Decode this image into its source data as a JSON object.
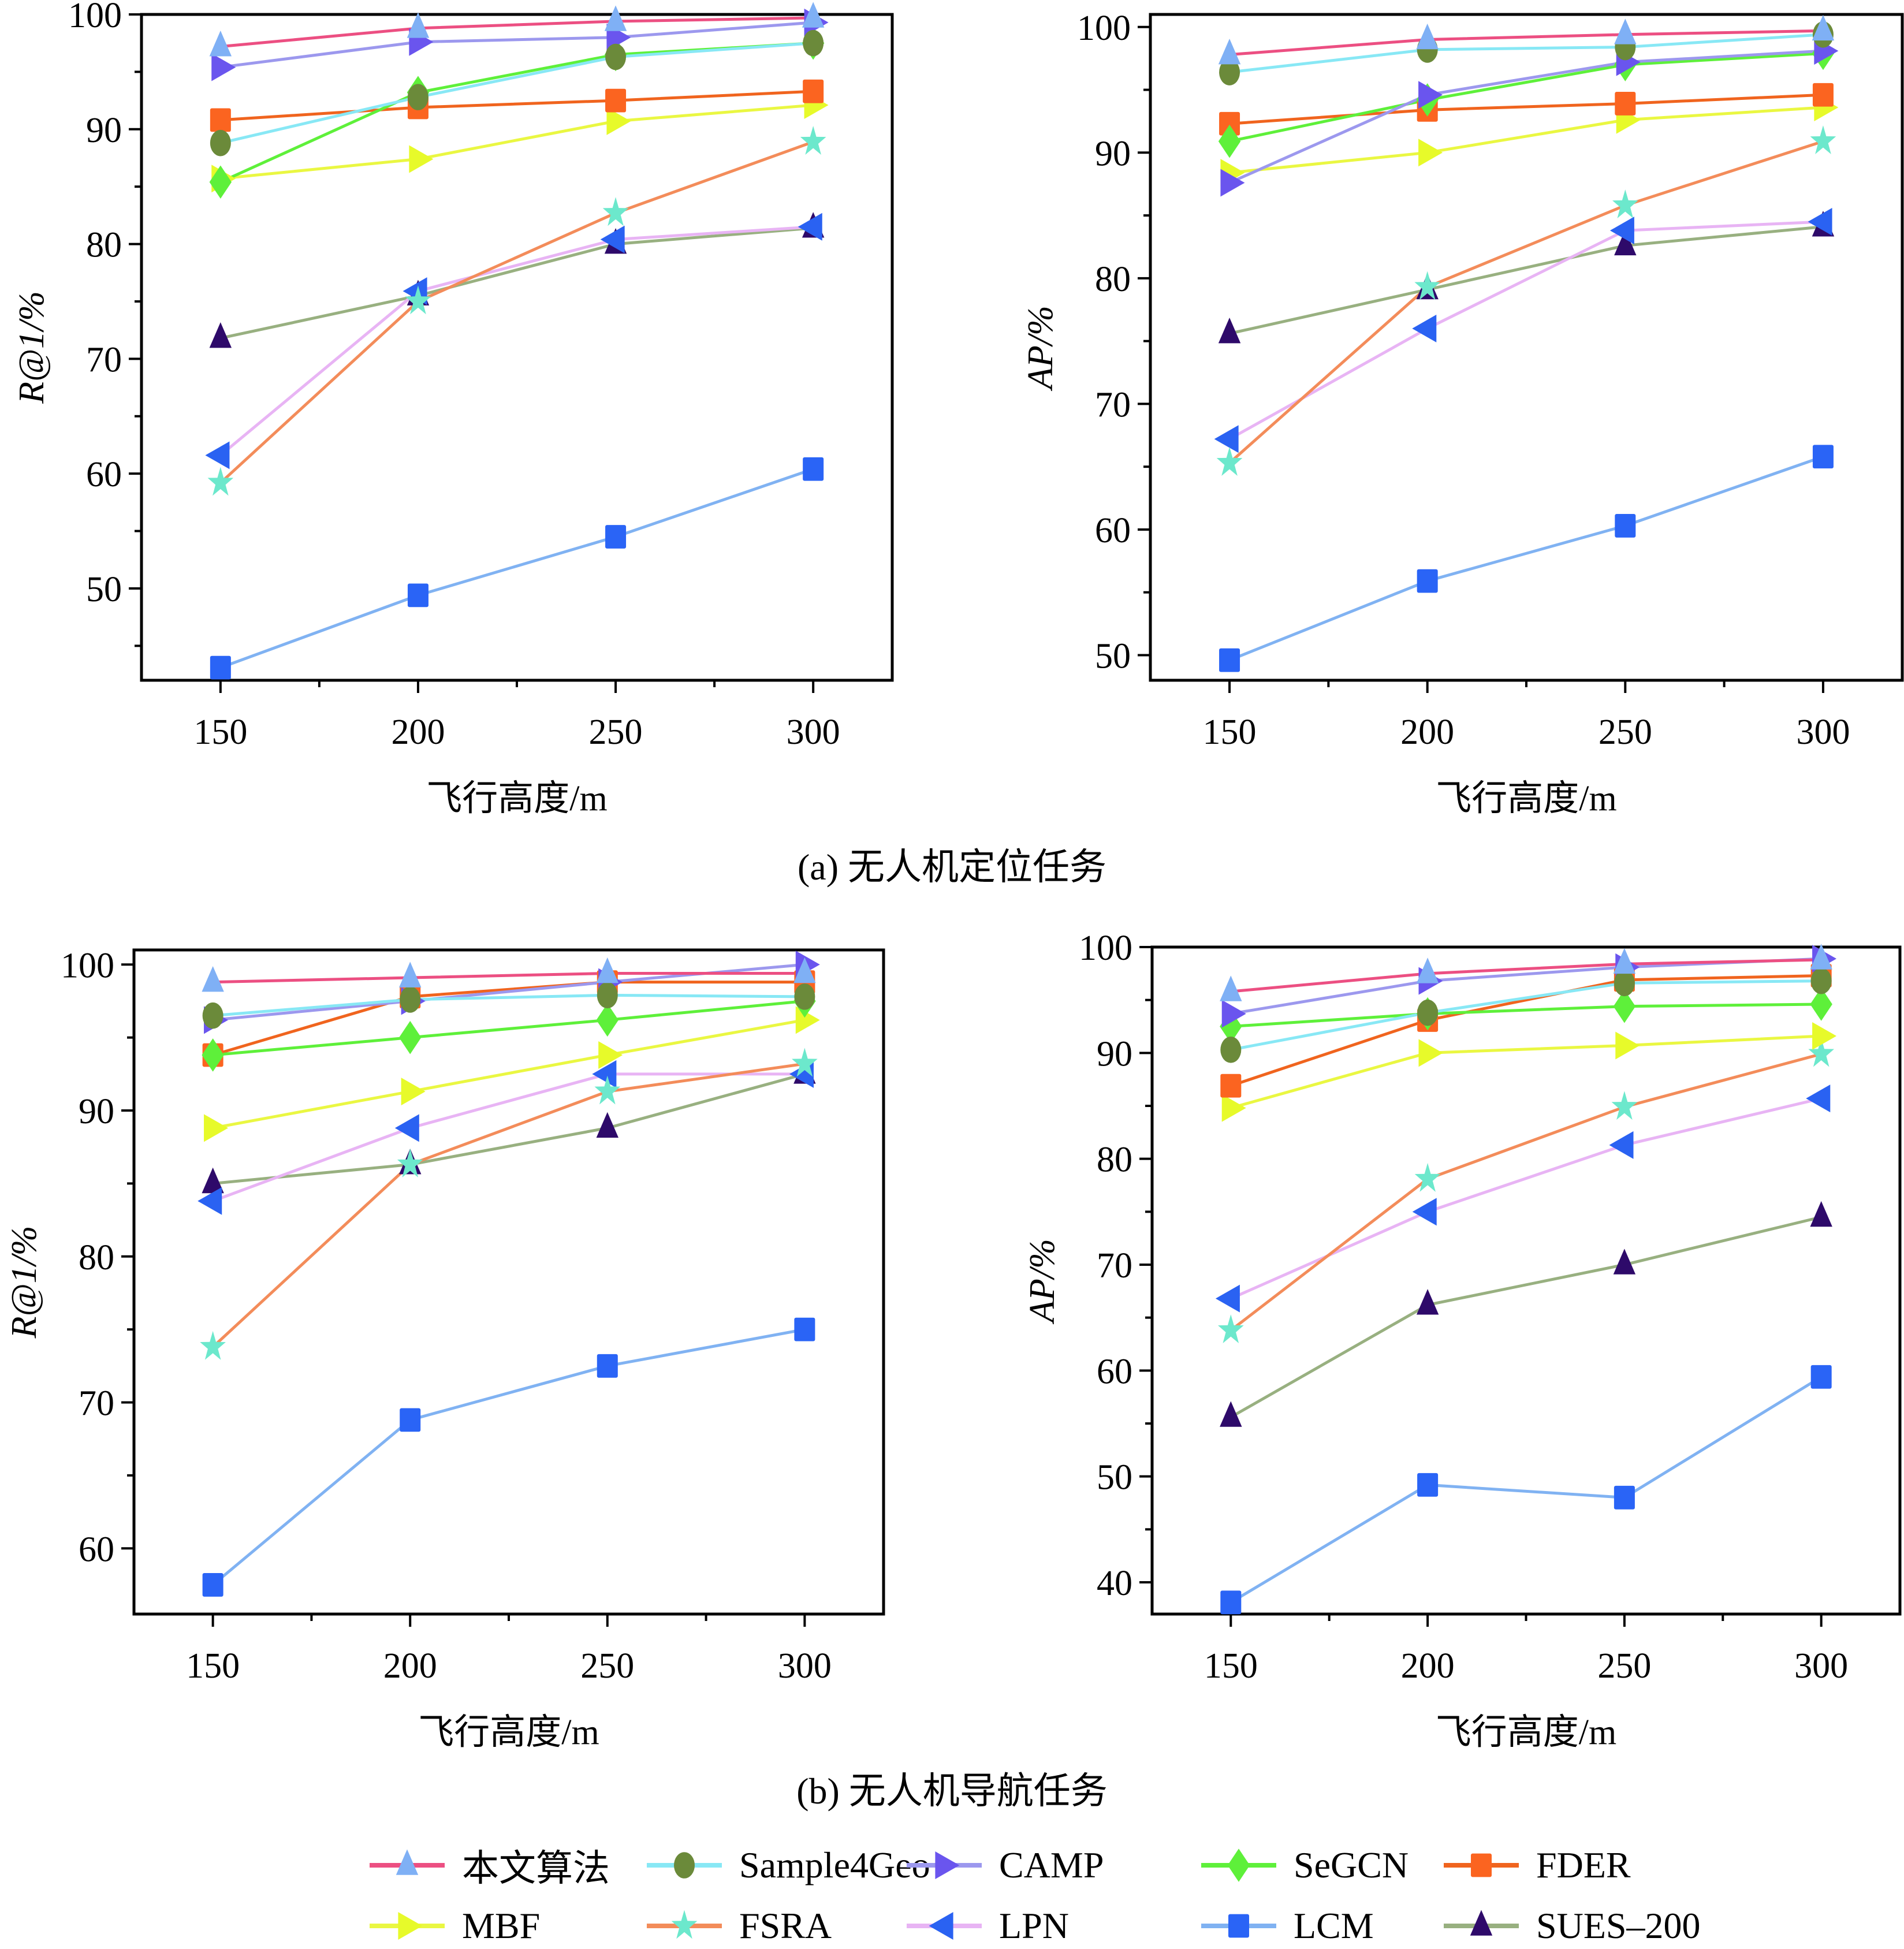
{
  "figure": {
    "captions": {
      "a": "(a) 无人机定位任务",
      "b": "(b) 无人机导航任务"
    }
  },
  "legend": {
    "position": "bottom",
    "entries": [
      {
        "name": "本文算法",
        "line_color": "#ec4f82",
        "marker_color": "#7fb0f5",
        "marker": "triangle-up"
      },
      {
        "name": "Sample4Geo",
        "line_color": "#88e8f5",
        "marker_color": "#6b8a3a",
        "marker": "circle"
      },
      {
        "name": "CAMP",
        "line_color": "#9c98ee",
        "marker_color": "#6a55ee",
        "marker": "triangle-right"
      },
      {
        "name": "SeGCN",
        "line_color": "#5ef03a",
        "marker_color": "#5ef03a",
        "marker": "diamond"
      },
      {
        "name": "FDER",
        "line_color": "#f0641e",
        "marker_color": "#fb6420",
        "marker": "square"
      },
      {
        "name": "MBF",
        "line_color": "#eaf742",
        "marker_color": "#e7fa2a",
        "marker": "triangle-right"
      },
      {
        "name": "FSRA",
        "line_color": "#f38c5a",
        "marker_color": "#6ce8cc",
        "marker": "star"
      },
      {
        "name": "LPN",
        "line_color": "#e8b4f4",
        "marker_color": "#2a62f2",
        "marker": "triangle-left"
      },
      {
        "name": "LCM",
        "line_color": "#80b2f2",
        "marker_color": "#2a64f6",
        "marker": "square"
      },
      {
        "name": "SUES–200",
        "line_color": "#98b080",
        "marker_color": "#2e0a6a",
        "marker": "triangle-up"
      }
    ]
  },
  "chart_data": [
    {
      "id": "a-left",
      "type": "line",
      "group": "(a) 无人机定位任务",
      "title": "",
      "xlabel": "飞行高度/m",
      "ylabel": "R@1/%",
      "x": [
        150,
        200,
        250,
        300
      ],
      "xticks": [
        "150",
        "200",
        "250",
        "300"
      ],
      "xlim": [
        130,
        320
      ],
      "ylim": [
        42,
        100
      ],
      "yticks": [
        "50",
        "60",
        "70",
        "80",
        "90",
        "100"
      ],
      "ytick_values": [
        50,
        60,
        70,
        80,
        90,
        100
      ],
      "grid": false,
      "series": [
        {
          "name": "本文算法",
          "values": [
            97.2,
            98.8,
            99.4,
            99.7
          ]
        },
        {
          "name": "Sample4Geo",
          "values": [
            88.8,
            92.8,
            96.3,
            97.5
          ]
        },
        {
          "name": "CAMP",
          "values": [
            95.4,
            97.6,
            98.0,
            99.3
          ]
        },
        {
          "name": "SeGCN",
          "values": [
            85.4,
            93.2,
            96.5,
            97.5
          ]
        },
        {
          "name": "FDER",
          "values": [
            90.8,
            91.9,
            92.5,
            93.3
          ]
        },
        {
          "name": "MBF",
          "values": [
            85.7,
            87.4,
            90.7,
            92.1
          ]
        },
        {
          "name": "FSRA",
          "values": [
            59.2,
            75.0,
            82.7,
            88.9
          ]
        },
        {
          "name": "LPN",
          "values": [
            61.6,
            75.9,
            80.4,
            81.5
          ]
        },
        {
          "name": "LCM",
          "values": [
            43.1,
            49.4,
            54.5,
            60.4
          ]
        },
        {
          "name": "SUES–200",
          "values": [
            71.8,
            75.5,
            80.0,
            81.4
          ]
        }
      ]
    },
    {
      "id": "a-right",
      "type": "line",
      "group": "(a) 无人机定位任务",
      "title": "",
      "xlabel": "飞行高度/m",
      "ylabel": "AP/%",
      "x": [
        150,
        200,
        250,
        300
      ],
      "xticks": [
        "150",
        "200",
        "250",
        "300"
      ],
      "xlim": [
        130,
        320
      ],
      "ylim": [
        48,
        101
      ],
      "yticks": [
        "50",
        "60",
        "70",
        "80",
        "90",
        "100"
      ],
      "ytick_values": [
        50,
        60,
        70,
        80,
        90,
        100
      ],
      "grid": false,
      "series": [
        {
          "name": "本文算法",
          "values": [
            97.8,
            99.0,
            99.4,
            99.7
          ]
        },
        {
          "name": "Sample4Geo",
          "values": [
            96.4,
            98.2,
            98.4,
            99.4
          ]
        },
        {
          "name": "CAMP",
          "values": [
            87.6,
            94.6,
            97.2,
            98.1
          ]
        },
        {
          "name": "SeGCN",
          "values": [
            90.9,
            94.2,
            97.0,
            97.9
          ]
        },
        {
          "name": "FDER",
          "values": [
            92.3,
            93.4,
            93.9,
            94.6
          ]
        },
        {
          "name": "MBF",
          "values": [
            88.4,
            90.0,
            92.6,
            93.6
          ]
        },
        {
          "name": "FSRA",
          "values": [
            65.3,
            79.3,
            85.8,
            90.9
          ]
        },
        {
          "name": "LPN",
          "values": [
            67.2,
            76.0,
            83.8,
            84.5
          ]
        },
        {
          "name": "LCM",
          "values": [
            49.6,
            55.9,
            60.3,
            65.8
          ]
        },
        {
          "name": "SUES–200",
          "values": [
            75.6,
            79.1,
            82.6,
            84.1
          ]
        }
      ]
    },
    {
      "id": "b-left",
      "type": "line",
      "group": "(b) 无人机导航任务",
      "title": "",
      "xlabel": "飞行高度/m",
      "ylabel": "R@1/%",
      "x": [
        150,
        200,
        250,
        300
      ],
      "xticks": [
        "150",
        "200",
        "250",
        "300"
      ],
      "xlim": [
        130,
        320
      ],
      "ylim": [
        55.5,
        101
      ],
      "yticks": [
        "60",
        "70",
        "80",
        "90",
        "100"
      ],
      "ytick_values": [
        60,
        70,
        80,
        90,
        100
      ],
      "grid": false,
      "series": [
        {
          "name": "本文算法",
          "values": [
            98.8,
            99.1,
            99.4,
            99.4
          ]
        },
        {
          "name": "Sample4Geo",
          "values": [
            96.5,
            97.6,
            97.9,
            97.8
          ]
        },
        {
          "name": "CAMP",
          "values": [
            96.2,
            97.5,
            98.8,
            100.0
          ]
        },
        {
          "name": "SeGCN",
          "values": [
            93.8,
            95.0,
            96.2,
            97.5
          ]
        },
        {
          "name": "FDER",
          "values": [
            93.8,
            97.8,
            98.8,
            98.8
          ]
        },
        {
          "name": "MBF",
          "values": [
            88.8,
            91.3,
            93.8,
            96.2
          ]
        },
        {
          "name": "FSRA",
          "values": [
            73.8,
            86.3,
            91.3,
            93.2
          ]
        },
        {
          "name": "LPN",
          "values": [
            83.8,
            88.8,
            92.5,
            92.5
          ]
        },
        {
          "name": "LCM",
          "values": [
            57.5,
            68.8,
            72.5,
            75.0
          ]
        },
        {
          "name": "SUES–200",
          "values": [
            85.0,
            86.3,
            88.8,
            92.5
          ]
        }
      ]
    },
    {
      "id": "b-right",
      "type": "line",
      "group": "(b) 无人机导航任务",
      "title": "",
      "xlabel": "飞行高度/m",
      "ylabel": "AP/%",
      "x": [
        150,
        200,
        250,
        300
      ],
      "xticks": [
        "150",
        "200",
        "250",
        "300"
      ],
      "xlim": [
        130,
        320
      ],
      "ylim": [
        37,
        100
      ],
      "yticks": [
        "40",
        "50",
        "60",
        "70",
        "80",
        "90",
        "100"
      ],
      "ytick_values": [
        40,
        50,
        60,
        70,
        80,
        90,
        100
      ],
      "grid": false,
      "series": [
        {
          "name": "本文算法",
          "values": [
            95.8,
            97.5,
            98.4,
            98.8
          ]
        },
        {
          "name": "Sample4Geo",
          "values": [
            90.3,
            93.8,
            96.6,
            96.8
          ]
        },
        {
          "name": "CAMP",
          "values": [
            93.7,
            96.8,
            98.1,
            98.9
          ]
        },
        {
          "name": "SeGCN",
          "values": [
            92.5,
            93.7,
            94.4,
            94.6
          ]
        },
        {
          "name": "FDER",
          "values": [
            86.9,
            93.1,
            96.9,
            97.3
          ]
        },
        {
          "name": "MBF",
          "values": [
            84.8,
            90.0,
            90.7,
            91.6
          ]
        },
        {
          "name": "FSRA",
          "values": [
            63.8,
            78.1,
            84.9,
            89.9
          ]
        },
        {
          "name": "LPN",
          "values": [
            66.8,
            75.0,
            81.3,
            85.7
          ]
        },
        {
          "name": "LCM",
          "values": [
            38.1,
            49.2,
            48.0,
            59.4
          ]
        },
        {
          "name": "SUES–200",
          "values": [
            55.6,
            66.2,
            70.0,
            74.5
          ]
        }
      ]
    }
  ]
}
